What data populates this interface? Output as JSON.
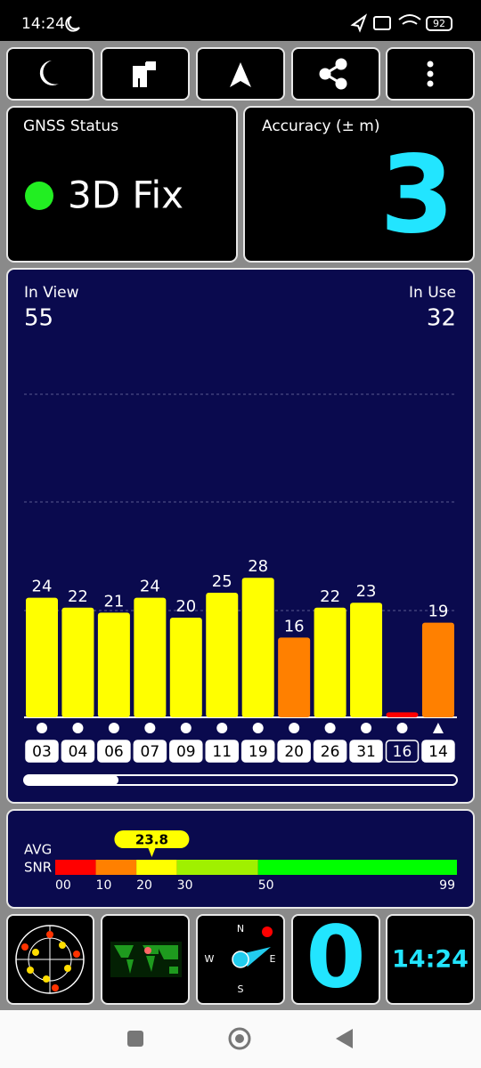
{
  "status_bar": {
    "time": "14:24",
    "battery": "92"
  },
  "gnss_status": {
    "title": "GNSS Status",
    "value": "3D Fix"
  },
  "accuracy": {
    "title": "Accuracy (± m)",
    "value": "3"
  },
  "satellites": {
    "in_view_label": "In View",
    "in_view": 55,
    "in_use_label": "In Use",
    "in_use": 32,
    "bars": [
      {
        "id": "03",
        "snr": 24,
        "color": "#ffff00",
        "marker": "dot",
        "used": true
      },
      {
        "id": "04",
        "snr": 22,
        "color": "#ffff00",
        "marker": "dot",
        "used": true
      },
      {
        "id": "06",
        "snr": 21,
        "color": "#ffff00",
        "marker": "dot",
        "used": true
      },
      {
        "id": "07",
        "snr": 24,
        "color": "#ffff00",
        "marker": "dot",
        "used": true
      },
      {
        "id": "09",
        "snr": 20,
        "color": "#ffff00",
        "marker": "dot",
        "used": true
      },
      {
        "id": "11",
        "snr": 25,
        "color": "#ffff00",
        "marker": "dot",
        "used": true
      },
      {
        "id": "19",
        "snr": 28,
        "color": "#ffff00",
        "marker": "dot",
        "used": true
      },
      {
        "id": "20",
        "snr": 16,
        "color": "#ff8000",
        "marker": "dot",
        "used": true
      },
      {
        "id": "26",
        "snr": 22,
        "color": "#ffff00",
        "marker": "dot",
        "used": true
      },
      {
        "id": "31",
        "snr": 23,
        "color": "#ffff00",
        "marker": "dot",
        "used": true
      },
      {
        "id": "16",
        "snr": 1,
        "color": "#ff0000",
        "marker": "dot",
        "used": false,
        "hide_label": true
      },
      {
        "id": "14",
        "snr": 19,
        "color": "#ff8000",
        "marker": "triangle",
        "used": true
      }
    ]
  },
  "snr_meter": {
    "label_line1": "AVG",
    "label_line2": "SNR",
    "value": 23.8,
    "ticks": [
      {
        "value": 0,
        "label": "00"
      },
      10,
      20,
      30,
      50,
      99
    ],
    "zone_colors": [
      "#ff0000",
      "#ff8000",
      "#ffff00",
      "#a0f000",
      "#00ff00"
    ]
  },
  "compass": {
    "n": "N",
    "e": "E",
    "s": "S",
    "w": "W"
  },
  "speed_tile": {
    "value": "0"
  },
  "clock_tile": {
    "time": "14:24"
  }
}
